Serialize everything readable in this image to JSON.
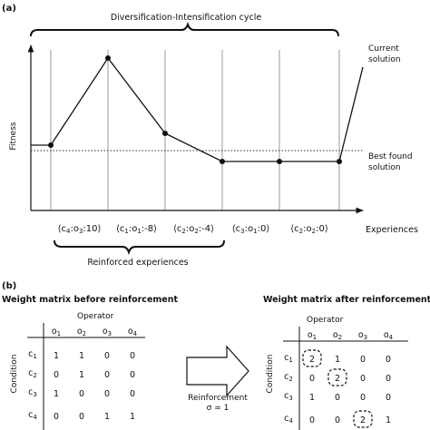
{
  "part_a": {
    "panel_label": "(a)",
    "cycle_label": "Diversification-Intensification cycle",
    "y_axis_label": "Fitness",
    "x_axis_label": "Experiences",
    "current_solution_label": [
      "Current",
      "solution"
    ],
    "best_found_label": [
      "Best found",
      "solution"
    ],
    "experiences": [
      {
        "c": "4",
        "o": "3",
        "value": "10"
      },
      {
        "c": "1",
        "o": "1",
        "value": "-8"
      },
      {
        "c": "2",
        "o": "2",
        "value": "-4"
      },
      {
        "c": "3",
        "o": "1",
        "value": "0"
      },
      {
        "c": "2",
        "o": "2",
        "value": "0"
      }
    ],
    "reinforced_label": "Reinforced experiences"
  },
  "part_b": {
    "panel_label": "(b)",
    "left_title": "Weight matrix before reinforcement",
    "right_title": "Weight matrix after reinforcement",
    "operator_label": "Operator",
    "condition_label": "Condition",
    "operators": [
      "1",
      "2",
      "3",
      "4"
    ],
    "conditions": [
      "1",
      "2",
      "3",
      "4"
    ],
    "before": [
      [
        "1",
        "1",
        "0",
        "0"
      ],
      [
        "0",
        "1",
        "0",
        "0"
      ],
      [
        "1",
        "0",
        "0",
        "0"
      ],
      [
        "0",
        "0",
        "1",
        "1"
      ]
    ],
    "after": [
      [
        "2",
        "1",
        "0",
        "0"
      ],
      [
        "0",
        "2",
        "0",
        "0"
      ],
      [
        "1",
        "0",
        "0",
        "0"
      ],
      [
        "0",
        "0",
        "2",
        "1"
      ]
    ],
    "arrow_label": [
      "Reinforcement",
      "σ = 1"
    ]
  }
}
